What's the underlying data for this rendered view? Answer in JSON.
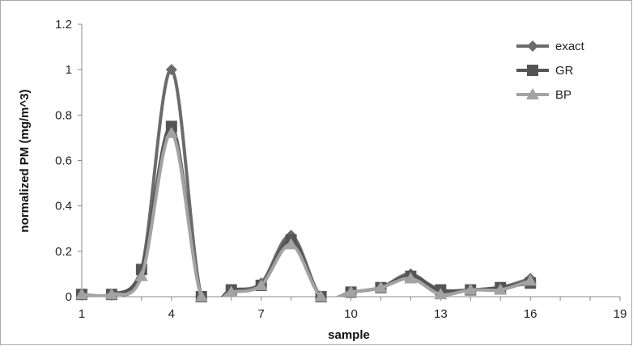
{
  "chart_data": {
    "type": "line",
    "xlabel": "sample",
    "ylabel": "normalized PM (mg/m^3)",
    "xlim": [
      1,
      19
    ],
    "ylim": [
      0,
      1.2
    ],
    "x_ticks": [
      "1",
      "4",
      "7",
      "10",
      "13",
      "16",
      "19"
    ],
    "y_ticks": [
      "0",
      "0.2",
      "0.4",
      "0.6",
      "0.8",
      "1",
      "1.2"
    ],
    "grid": false,
    "legend_position": "top-right",
    "x": [
      1,
      2,
      3,
      4,
      5,
      6,
      7,
      8,
      9,
      10,
      11,
      12,
      13,
      14,
      15,
      16
    ],
    "series": [
      {
        "name": "exact",
        "marker": "diamond",
        "color": "#6b6b6b",
        "values": [
          0.01,
          0.01,
          0.12,
          1.0,
          0.0,
          0.03,
          0.06,
          0.27,
          0.0,
          0.02,
          0.04,
          0.1,
          0.02,
          0.03,
          0.04,
          0.08
        ]
      },
      {
        "name": "GR",
        "marker": "square",
        "color": "#555555",
        "values": [
          0.01,
          0.01,
          0.12,
          0.75,
          0.0,
          0.03,
          0.05,
          0.25,
          0.0,
          0.02,
          0.04,
          0.09,
          0.03,
          0.03,
          0.04,
          0.06
        ]
      },
      {
        "name": "BP",
        "marker": "triangle",
        "color": "#a3a3a3",
        "values": [
          0.01,
          0.01,
          0.09,
          0.72,
          0.0,
          0.02,
          0.05,
          0.23,
          0.0,
          0.02,
          0.04,
          0.08,
          0.01,
          0.03,
          0.03,
          0.07
        ]
      }
    ]
  }
}
